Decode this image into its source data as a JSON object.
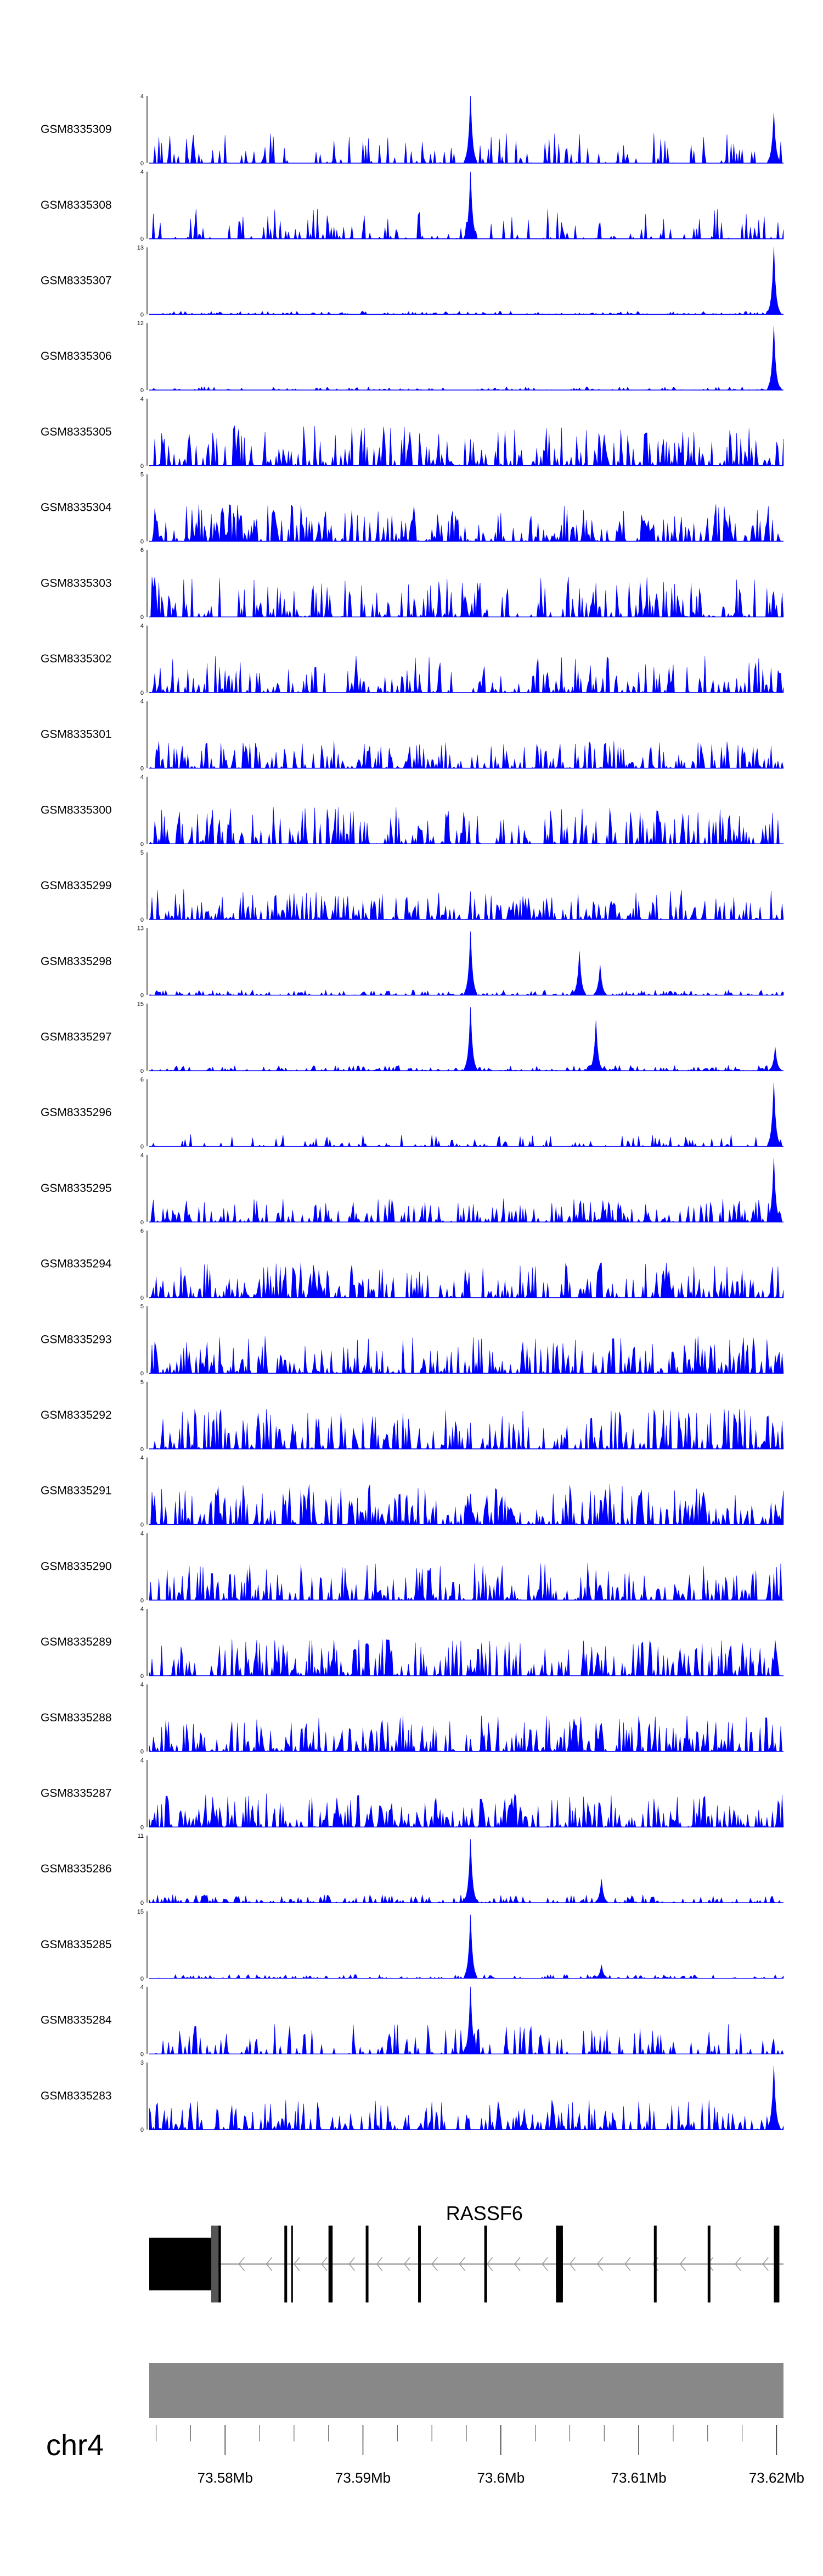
{
  "chart_data": {
    "type": "area",
    "fill_color": "#0000ff",
    "x_unit": "Mb",
    "xlim": [
      73.5745,
      73.6205
    ],
    "tracks": [
      {
        "name": "GSM8335309",
        "ymax": "4",
        "ymin": "0",
        "seed": 309,
        "density": 0.28,
        "height": 0.45,
        "spikes": [
          [
            73.5978,
            1.0
          ],
          [
            73.6198,
            0.75
          ]
        ]
      },
      {
        "name": "GSM8335308",
        "ymax": "4",
        "ymin": "0",
        "seed": 308,
        "density": 0.28,
        "height": 0.45,
        "spikes": [
          [
            73.5978,
            1.0
          ]
        ]
      },
      {
        "name": "GSM8335307",
        "ymax": "13",
        "ymin": "0",
        "seed": 307,
        "density": 0.45,
        "height": 0.05,
        "spikes": [
          [
            73.6198,
            1.0
          ]
        ]
      },
      {
        "name": "GSM8335306",
        "ymax": "12",
        "ymin": "0",
        "seed": 306,
        "density": 0.3,
        "height": 0.05,
        "spikes": [
          [
            73.6198,
            0.95
          ]
        ]
      },
      {
        "name": "GSM8335305",
        "ymax": "4",
        "ymin": "0",
        "seed": 305,
        "density": 0.55,
        "height": 0.6,
        "spikes": []
      },
      {
        "name": "GSM8335304",
        "ymax": "5",
        "ymin": "0",
        "seed": 304,
        "density": 0.6,
        "height": 0.55,
        "spikes": []
      },
      {
        "name": "GSM8335303",
        "ymax": "6",
        "ymin": "0",
        "seed": 303,
        "density": 0.45,
        "height": 0.6,
        "spikes": []
      },
      {
        "name": "GSM8335302",
        "ymax": "4",
        "ymin": "0",
        "seed": 302,
        "density": 0.5,
        "height": 0.55,
        "spikes": []
      },
      {
        "name": "GSM8335301",
        "ymax": "4",
        "ymin": "0",
        "seed": 301,
        "density": 0.55,
        "height": 0.4,
        "spikes": []
      },
      {
        "name": "GSM8335300",
        "ymax": "4",
        "ymin": "0",
        "seed": 300,
        "density": 0.5,
        "height": 0.55,
        "spikes": []
      },
      {
        "name": "GSM8335299",
        "ymax": "5",
        "ymin": "0",
        "seed": 299,
        "density": 0.6,
        "height": 0.45,
        "spikes": []
      },
      {
        "name": "GSM8335298",
        "ymax": "13",
        "ymin": "0",
        "seed": 298,
        "density": 0.5,
        "height": 0.08,
        "spikes": [
          [
            73.5978,
            0.95
          ],
          [
            73.6057,
            0.65
          ],
          [
            73.6072,
            0.45
          ]
        ]
      },
      {
        "name": "GSM8335297",
        "ymax": "15",
        "ymin": "0",
        "seed": 297,
        "density": 0.5,
        "height": 0.08,
        "spikes": [
          [
            73.5978,
            0.95
          ],
          [
            73.6069,
            0.75
          ],
          [
            73.6199,
            0.35
          ]
        ]
      },
      {
        "name": "GSM8335296",
        "ymax": "6",
        "ymin": "0",
        "seed": 296,
        "density": 0.3,
        "height": 0.18,
        "spikes": [
          [
            73.6198,
            0.95
          ]
        ]
      },
      {
        "name": "GSM8335295",
        "ymax": "4",
        "ymin": "0",
        "seed": 295,
        "density": 0.5,
        "height": 0.35,
        "spikes": [
          [
            73.6198,
            0.95
          ]
        ]
      },
      {
        "name": "GSM8335294",
        "ymax": "6",
        "ymin": "0",
        "seed": 294,
        "density": 0.55,
        "height": 0.55,
        "spikes": []
      },
      {
        "name": "GSM8335293",
        "ymax": "5",
        "ymin": "0",
        "seed": 293,
        "density": 0.6,
        "height": 0.55,
        "spikes": []
      },
      {
        "name": "GSM8335292",
        "ymax": "5",
        "ymin": "0",
        "seed": 292,
        "density": 0.55,
        "height": 0.6,
        "spikes": []
      },
      {
        "name": "GSM8335291",
        "ymax": "4",
        "ymin": "0",
        "seed": 291,
        "density": 0.6,
        "height": 0.6,
        "spikes": []
      },
      {
        "name": "GSM8335290",
        "ymax": "4",
        "ymin": "0",
        "seed": 290,
        "density": 0.55,
        "height": 0.55,
        "spikes": []
      },
      {
        "name": "GSM8335289",
        "ymax": "4",
        "ymin": "0",
        "seed": 289,
        "density": 0.6,
        "height": 0.55,
        "spikes": []
      },
      {
        "name": "GSM8335288",
        "ymax": "4",
        "ymin": "0",
        "seed": 288,
        "density": 0.6,
        "height": 0.55,
        "spikes": []
      },
      {
        "name": "GSM8335287",
        "ymax": "4",
        "ymin": "0",
        "seed": 287,
        "density": 0.65,
        "height": 0.5,
        "spikes": []
      },
      {
        "name": "GSM8335286",
        "ymax": "11",
        "ymin": "0",
        "seed": 286,
        "density": 0.5,
        "height": 0.12,
        "spikes": [
          [
            73.5978,
            0.95
          ],
          [
            73.6073,
            0.35
          ]
        ]
      },
      {
        "name": "GSM8335285",
        "ymax": "15",
        "ymin": "0",
        "seed": 285,
        "density": 0.45,
        "height": 0.06,
        "spikes": [
          [
            73.5978,
            0.95
          ],
          [
            73.6073,
            0.2
          ]
        ]
      },
      {
        "name": "GSM8335284",
        "ymax": "4",
        "ymin": "0",
        "seed": 284,
        "density": 0.35,
        "height": 0.45,
        "spikes": [
          [
            73.5978,
            1.0
          ]
        ]
      },
      {
        "name": "GSM8335283",
        "ymax": "3",
        "ymin": "0",
        "seed": 283,
        "density": 0.55,
        "height": 0.45,
        "spikes": [
          [
            73.6198,
            0.95
          ]
        ]
      }
    ],
    "gene": {
      "name": "RASSF6",
      "strand": "-",
      "start": 73.5745,
      "end": 73.6205,
      "exons": [
        [
          73.5745,
          73.579,
          "utr"
        ],
        [
          73.579,
          73.5794,
          "cds"
        ],
        [
          73.5795,
          73.5797,
          "cds"
        ],
        [
          73.5843,
          73.5845,
          "cds"
        ],
        [
          73.5848,
          73.5849,
          "cds"
        ],
        [
          73.5875,
          73.5878,
          "cds"
        ],
        [
          73.5902,
          73.5904,
          "cds"
        ],
        [
          73.594,
          73.5942,
          "cds"
        ],
        [
          73.5988,
          73.599,
          "cds"
        ],
        [
          73.604,
          73.6045,
          "cds"
        ],
        [
          73.6111,
          73.6113,
          "cds"
        ],
        [
          73.615,
          73.6152,
          "cds"
        ],
        [
          73.6198,
          73.6202,
          "cds"
        ]
      ]
    },
    "chromosome": "chr4",
    "ticks": [
      "73.58Mb",
      "73.59Mb",
      "73.6Mb",
      "73.61Mb",
      "73.62Mb"
    ],
    "tick_values": [
      73.58,
      73.59,
      73.6,
      73.61,
      73.62
    ],
    "minor_tick_step": 0.0025
  }
}
